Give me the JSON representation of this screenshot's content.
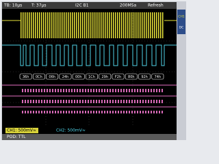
{
  "status_bar": {
    "timebase": "TB: 10µs",
    "trigger": "T: 37µs",
    "bus": "I2C B1",
    "sample_rate": "200MSa",
    "mode": "Refresh"
  },
  "decode": [
    "36h",
    "0Ch",
    "06h",
    "24h",
    "00h",
    "1Ch",
    "29h",
    "F2h",
    "80h",
    "92h",
    "74h"
  ],
  "footer": {
    "ch1": "CH1: 500mV≈",
    "ch2": "CH2: 500mV≈",
    "pod": "POD: TTL"
  },
  "side_panel": [
    "CH1",
    "DC"
  ]
}
